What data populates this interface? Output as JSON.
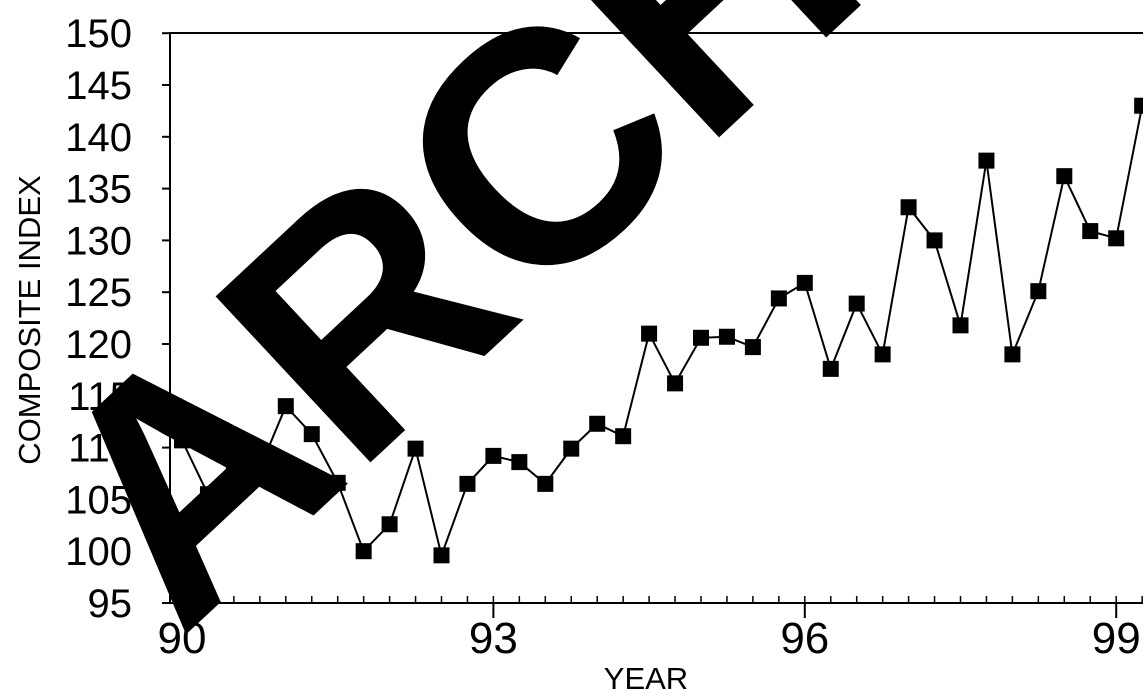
{
  "watermark": {
    "text": "ARCHIVE",
    "color": "#000000"
  },
  "chart_data": {
    "type": "line",
    "title": "",
    "xlabel": "YEAR",
    "ylabel": "COMPOSITE INDEX",
    "xlim": [
      90,
      99.3
    ],
    "ylim": [
      95,
      150
    ],
    "x_ticks": [
      90,
      93,
      96,
      99
    ],
    "x_tick_labels": [
      "90",
      "93",
      "96",
      "99"
    ],
    "y_ticks": [
      95,
      100,
      105,
      110,
      115,
      120,
      125,
      130,
      135,
      140,
      145,
      150
    ],
    "y_tick_labels": [
      "95",
      "100",
      "105",
      "110",
      "115",
      "120",
      "125",
      "130",
      "135",
      "140",
      "145",
      "150"
    ],
    "grid": false,
    "legend": "none",
    "marker": "square",
    "line_color": "#000000",
    "series": [
      {
        "x": [
          90.0,
          90.25,
          90.5,
          90.75,
          91.0,
          91.25,
          91.5,
          91.75,
          92.0,
          92.25,
          92.5,
          92.75,
          93.0,
          93.25,
          93.5,
          93.75,
          94.0,
          94.25,
          94.5,
          94.75,
          95.0,
          95.25,
          95.5,
          95.75,
          96.0,
          96.25,
          96.5,
          96.75,
          97.0,
          97.25,
          97.5,
          97.75,
          98.0,
          98.25,
          98.5,
          98.75,
          99.0,
          99.25
        ],
        "y": [
          110.7,
          105.5,
          108.7,
          108.0,
          114.0,
          111.3,
          106.6,
          100.0,
          102.6,
          109.9,
          99.6,
          106.5,
          109.2,
          108.6,
          106.5,
          109.9,
          112.3,
          111.1,
          121.0,
          116.2,
          120.6,
          120.7,
          119.7,
          124.4,
          125.9,
          117.6,
          123.9,
          119.0,
          133.2,
          130.0,
          121.8,
          137.7,
          119.0,
          125.1,
          136.2,
          130.9,
          130.2,
          143.0
        ]
      }
    ]
  }
}
